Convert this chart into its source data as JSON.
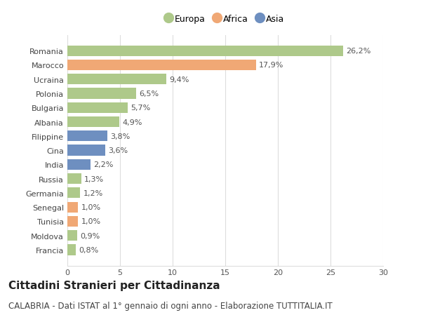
{
  "countries": [
    "Romania",
    "Marocco",
    "Ucraina",
    "Polonia",
    "Bulgaria",
    "Albania",
    "Filippine",
    "Cina",
    "India",
    "Russia",
    "Germania",
    "Senegal",
    "Tunisia",
    "Moldova",
    "Francia"
  ],
  "values": [
    26.2,
    17.9,
    9.4,
    6.5,
    5.7,
    4.9,
    3.8,
    3.6,
    2.2,
    1.3,
    1.2,
    1.0,
    1.0,
    0.9,
    0.8
  ],
  "labels": [
    "26,2%",
    "17,9%",
    "9,4%",
    "6,5%",
    "5,7%",
    "4,9%",
    "3,8%",
    "3,6%",
    "2,2%",
    "1,3%",
    "1,2%",
    "1,0%",
    "1,0%",
    "0,9%",
    "0,8%"
  ],
  "continents": [
    "Europa",
    "Africa",
    "Europa",
    "Europa",
    "Europa",
    "Europa",
    "Asia",
    "Asia",
    "Asia",
    "Europa",
    "Europa",
    "Africa",
    "Africa",
    "Europa",
    "Europa"
  ],
  "colors": {
    "Europa": "#aec98a",
    "Africa": "#f0a875",
    "Asia": "#6e8fc0"
  },
  "legend_labels": [
    "Europa",
    "Africa",
    "Asia"
  ],
  "xlim": [
    0,
    30
  ],
  "xticks": [
    0,
    5,
    10,
    15,
    20,
    25,
    30
  ],
  "title": "Cittadini Stranieri per Cittadinanza",
  "subtitle": "CALABRIA - Dati ISTAT al 1° gennaio di ogni anno - Elaborazione TUTTITALIA.IT",
  "background_color": "#ffffff",
  "grid_color": "#dddddd",
  "bar_height": 0.75,
  "title_fontsize": 11,
  "subtitle_fontsize": 8.5,
  "tick_fontsize": 8,
  "label_fontsize": 8,
  "legend_fontsize": 9
}
